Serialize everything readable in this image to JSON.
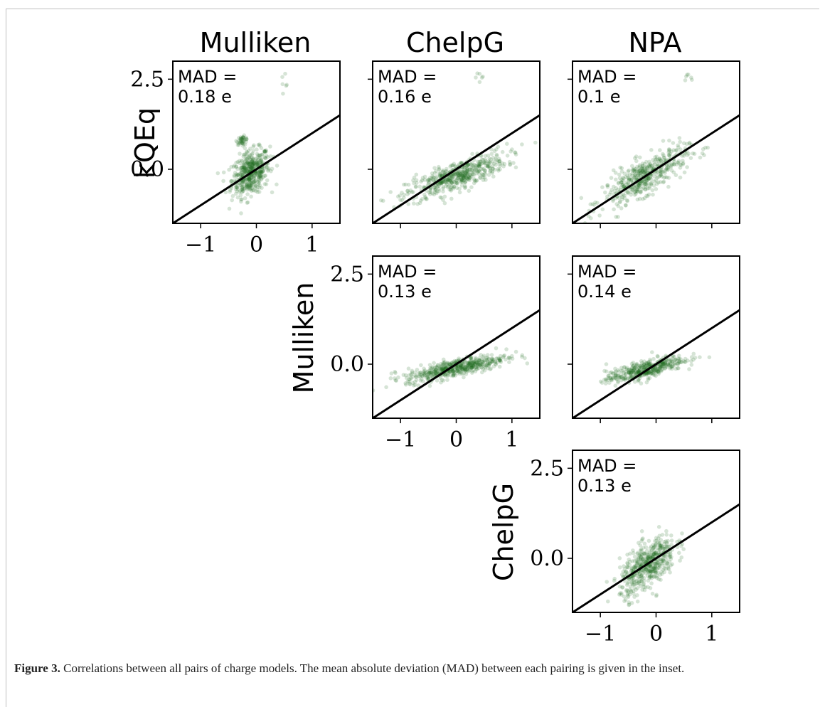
{
  "caption": {
    "label": "Figure 3.",
    "text": "Correlations between all pairs of charge models. The mean absolute deviation (MAD) between each pairing is given in the inset."
  },
  "chart_data": {
    "type": "scatter",
    "colors": {
      "points": "#1e6b1a",
      "line": "#000000"
    },
    "columns": [
      "Mulliken",
      "ChelpG",
      "NPA"
    ],
    "rows": [
      "kQEq",
      "Mulliken",
      "ChelpG"
    ],
    "xlim": [
      -1.5,
      1.5
    ],
    "ylim": [
      -1.5,
      3.0
    ],
    "xticks": [
      {
        "v": -1,
        "label": "−1"
      },
      {
        "v": 0,
        "label": "0"
      },
      {
        "v": 1,
        "label": "1"
      }
    ],
    "yticks": [
      {
        "v": 0,
        "label": "0.0"
      },
      {
        "v": 2.5,
        "label": "2.5"
      }
    ],
    "reference_line": "y = x",
    "panels": [
      {
        "row": 0,
        "col": 0,
        "mad_line1": "MAD =",
        "mad_line2": "0.18 e",
        "show_x_labels": true,
        "show_y_labels": true
      },
      {
        "row": 0,
        "col": 1,
        "mad_line1": "MAD =",
        "mad_line2": "0.16 e",
        "show_x_labels": false,
        "show_y_labels": false
      },
      {
        "row": 0,
        "col": 2,
        "mad_line1": "MAD =",
        "mad_line2": "0.1 e",
        "show_x_labels": false,
        "show_y_labels": false
      },
      {
        "row": 1,
        "col": 1,
        "mad_line1": "MAD =",
        "mad_line2": "0.13 e",
        "show_x_labels": true,
        "show_y_labels": true
      },
      {
        "row": 1,
        "col": 2,
        "mad_line1": "MAD =",
        "mad_line2": "0.14 e",
        "show_x_labels": false,
        "show_y_labels": false
      },
      {
        "row": 2,
        "col": 2,
        "mad_line1": "MAD =",
        "mad_line2": "0.13 e",
        "show_x_labels": true,
        "show_y_labels": true
      }
    ]
  }
}
